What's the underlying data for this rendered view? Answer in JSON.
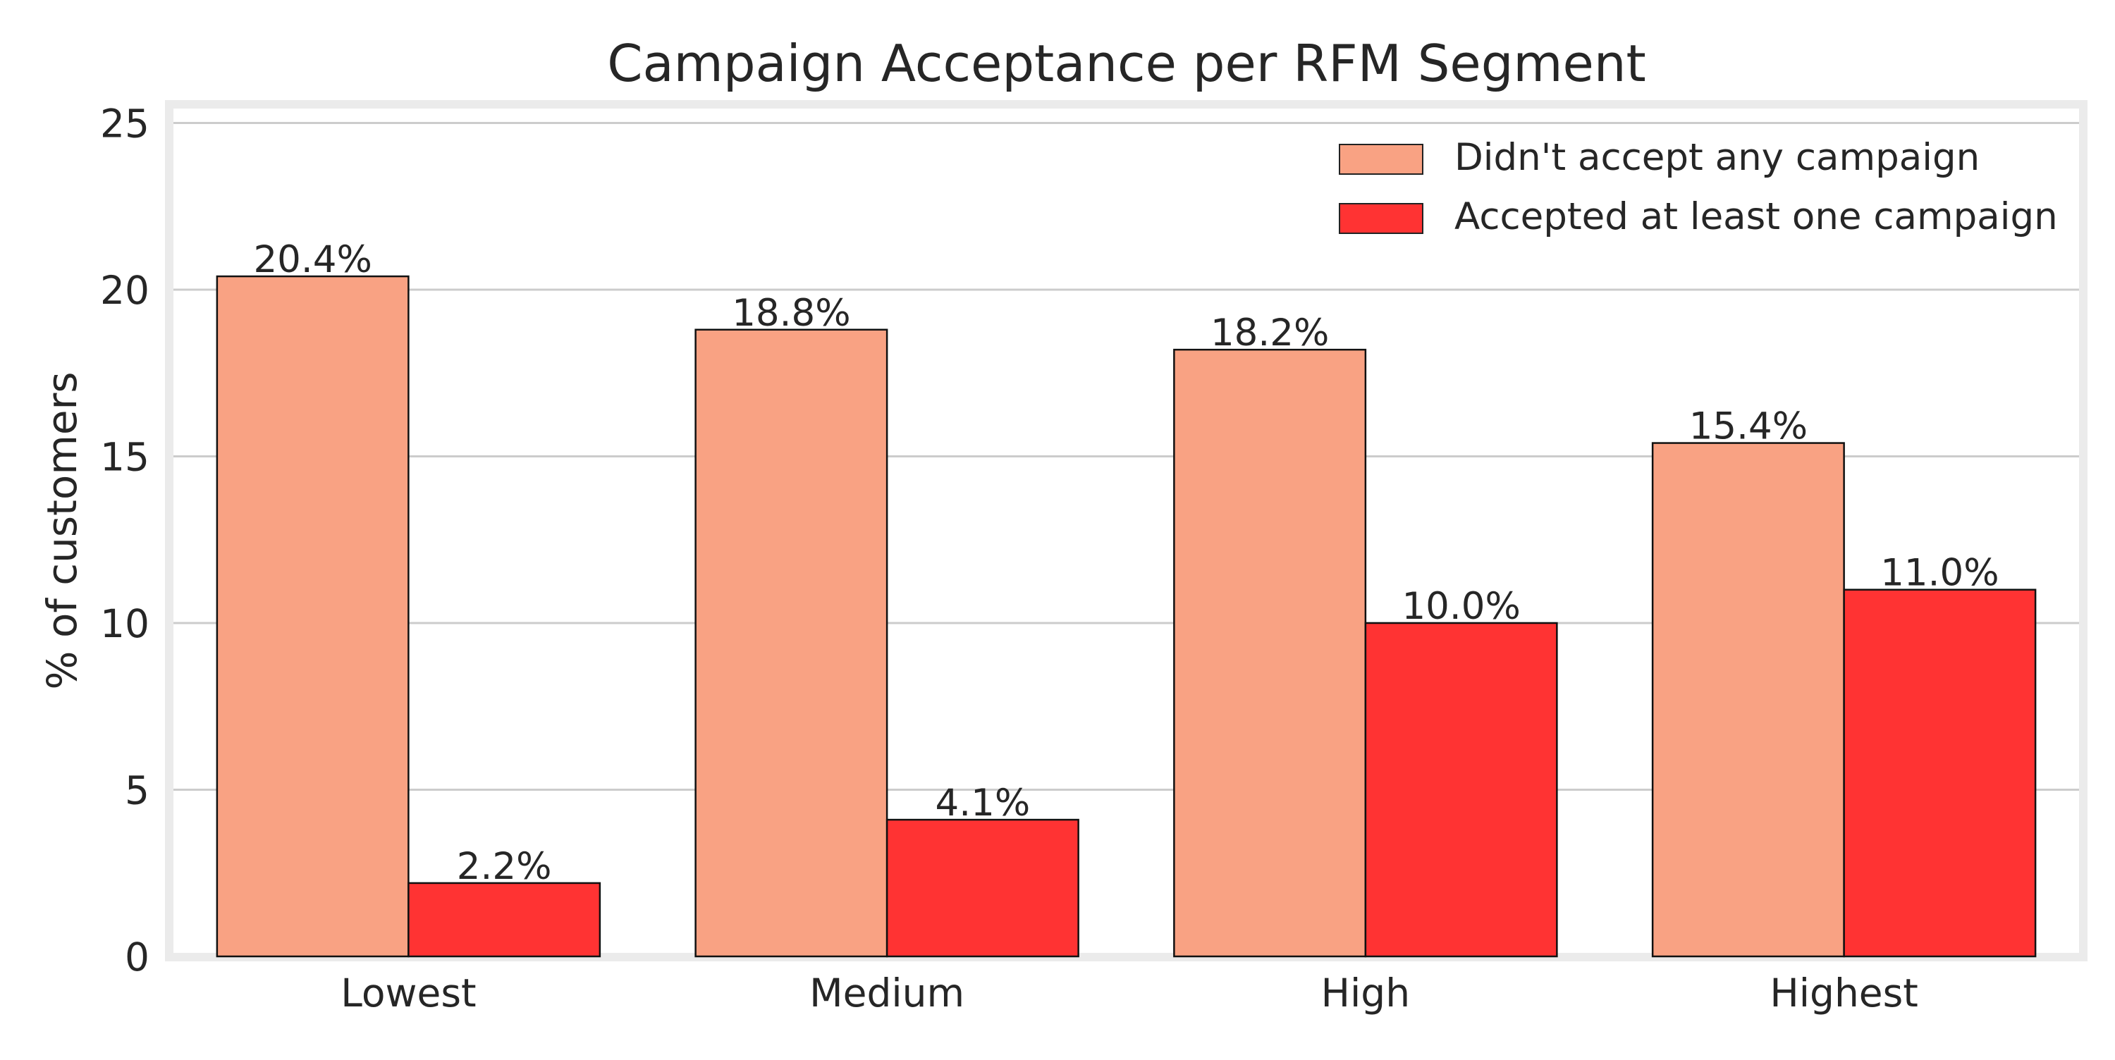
{
  "chart_data": {
    "type": "bar",
    "title": "Campaign Acceptance per RFM Segment",
    "xlabel": "",
    "ylabel": "% of customers",
    "categories": [
      "Lowest",
      "Medium",
      "High",
      "Highest"
    ],
    "ylim": [
      0,
      25.5
    ],
    "yticks": [
      0,
      5,
      10,
      15,
      20,
      25
    ],
    "grid": true,
    "legend_position": "top-right",
    "series": [
      {
        "name": "Didn't accept any campaign",
        "values": [
          20.4,
          18.8,
          18.2,
          15.4
        ],
        "labels": [
          "20.4%",
          "18.8%",
          "18.2%",
          "15.4%"
        ],
        "color": "#f9a283"
      },
      {
        "name": "Accepted at least one campaign",
        "values": [
          2.2,
          4.1,
          10.0,
          11.0
        ],
        "labels": [
          "2.2%",
          "4.1%",
          "10.0%",
          "11.0%"
        ],
        "color": "#ff3333"
      }
    ]
  }
}
